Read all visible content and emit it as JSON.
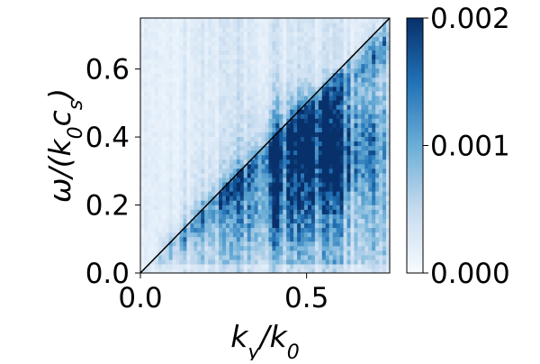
{
  "chart_data": {
    "type": "heatmap",
    "title": "",
    "xlabel": "k_y/k_0",
    "ylabel": "ω/(k_0c_s)",
    "xlim": [
      0.0,
      0.75
    ],
    "ylim": [
      0.0,
      0.75
    ],
    "x_ticks": [
      {
        "value": 0.0,
        "label": "0.0"
      },
      {
        "value": 0.5,
        "label": "0.5"
      }
    ],
    "y_ticks": [
      {
        "value": 0.0,
        "label": "0.0"
      },
      {
        "value": 0.2,
        "label": "0.2"
      },
      {
        "value": 0.4,
        "label": "0.4"
      },
      {
        "value": 0.6,
        "label": "0.6"
      }
    ],
    "colorbar": {
      "colormap": "Blues",
      "range": [
        0.0,
        0.002
      ],
      "ticks": [
        {
          "value": 0.0,
          "label": "0.000"
        },
        {
          "value": 0.001,
          "label": "0.001"
        },
        {
          "value": 0.002,
          "label": "0.002"
        }
      ],
      "colors": [
        "#f7fbff",
        "#c6dbef",
        "#6baed6",
        "#2171b5",
        "#08306b"
      ]
    },
    "intensity_peak": {
      "x": 0.55,
      "y": 0.37,
      "value": 0.002
    },
    "overlay_line": {
      "x": [
        0.0,
        0.75
      ],
      "y": [
        0.0,
        0.75
      ],
      "color": "#000000"
    },
    "grid": false,
    "legend": "none"
  }
}
